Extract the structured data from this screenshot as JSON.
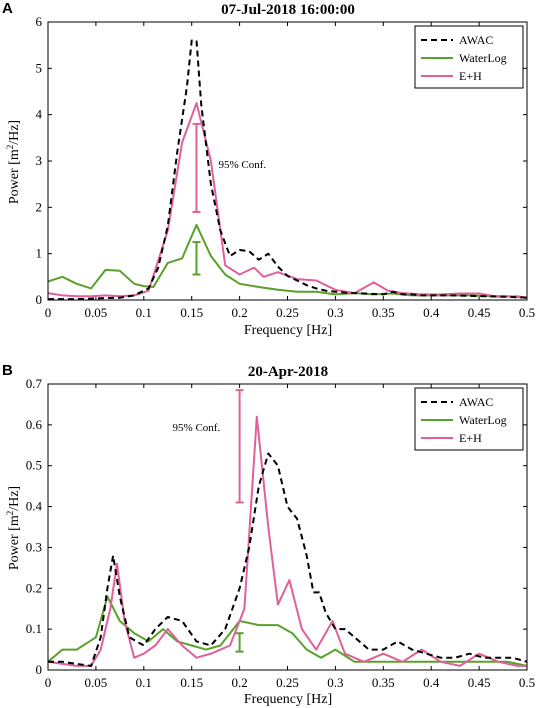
{
  "chart_data": [
    {
      "panel": "A",
      "type": "line",
      "title": "07-Jul-2018 16:00:00",
      "xlabel": "Frequency [Hz]",
      "ylabel": "Power [m2/Hz]",
      "xlim": [
        0,
        0.5
      ],
      "ylim": [
        0,
        6
      ],
      "xticks": [
        "0",
        "0.05",
        "0.1",
        "0.15",
        "0.2",
        "0.25",
        "0.3",
        "0.35",
        "0.4",
        "0.45",
        "0.5"
      ],
      "yticks": [
        "0",
        "1",
        "2",
        "3",
        "4",
        "5",
        "6"
      ],
      "legend_position": "top-right",
      "grid": false,
      "series": [
        {
          "name": "AWAC",
          "color": "#000000",
          "dash": true,
          "x": [
            0,
            0.015,
            0.03,
            0.045,
            0.06,
            0.075,
            0.09,
            0.105,
            0.115,
            0.125,
            0.135,
            0.145,
            0.15,
            0.155,
            0.16,
            0.17,
            0.18,
            0.19,
            0.2,
            0.21,
            0.22,
            0.23,
            0.24,
            0.25,
            0.26,
            0.27,
            0.28,
            0.29,
            0.3,
            0.31,
            0.32,
            0.33,
            0.34,
            0.35,
            0.36,
            0.37,
            0.38,
            0.39,
            0.4,
            0.42,
            0.44,
            0.46,
            0.48,
            0.5
          ],
          "y": [
            0.02,
            0.02,
            0.02,
            0.03,
            0.04,
            0.05,
            0.1,
            0.25,
            0.7,
            1.6,
            3.2,
            4.6,
            5.6,
            5.6,
            4.2,
            2.5,
            1.5,
            0.95,
            1.08,
            1.05,
            0.87,
            1.0,
            0.72,
            0.52,
            0.42,
            0.32,
            0.25,
            0.2,
            0.18,
            0.16,
            0.15,
            0.14,
            0.13,
            0.12,
            0.18,
            0.12,
            0.12,
            0.1,
            0.1,
            0.1,
            0.09,
            0.08,
            0.07,
            0.05
          ]
        },
        {
          "name": "WaterLog",
          "color": "#5aa02c",
          "dash": false,
          "x": [
            0,
            0.015,
            0.03,
            0.045,
            0.06,
            0.075,
            0.09,
            0.1,
            0.11,
            0.125,
            0.14,
            0.155,
            0.17,
            0.185,
            0.2,
            0.22,
            0.24,
            0.26,
            0.28,
            0.3,
            0.32,
            0.34,
            0.36,
            0.38,
            0.4,
            0.42,
            0.44,
            0.46,
            0.48,
            0.5
          ],
          "y": [
            0.4,
            0.5,
            0.35,
            0.25,
            0.65,
            0.63,
            0.35,
            0.3,
            0.28,
            0.8,
            0.9,
            1.62,
            0.95,
            0.55,
            0.35,
            0.28,
            0.22,
            0.18,
            0.18,
            0.12,
            0.15,
            0.12,
            0.14,
            0.1,
            0.1,
            0.1,
            0.1,
            0.08,
            0.08,
            0.05
          ]
        },
        {
          "name": "E+H",
          "color": "#e0609a",
          "dash": false,
          "x": [
            0,
            0.015,
            0.03,
            0.045,
            0.06,
            0.075,
            0.09,
            0.105,
            0.125,
            0.14,
            0.155,
            0.17,
            0.185,
            0.2,
            0.215,
            0.225,
            0.24,
            0.26,
            0.28,
            0.3,
            0.32,
            0.34,
            0.355,
            0.37,
            0.39,
            0.41,
            0.43,
            0.45,
            0.47,
            0.49,
            0.5
          ],
          "y": [
            0.15,
            0.1,
            0.08,
            0.08,
            0.1,
            0.08,
            0.1,
            0.2,
            1.5,
            3.4,
            4.25,
            3.0,
            0.75,
            0.55,
            0.7,
            0.5,
            0.6,
            0.45,
            0.42,
            0.22,
            0.15,
            0.38,
            0.2,
            0.15,
            0.12,
            0.12,
            0.14,
            0.14,
            0.07,
            0.08,
            0.05
          ]
        }
      ],
      "conf_bars": [
        {
          "series": "E+H",
          "color": "#e0609a",
          "x": 0.155,
          "y_low": 1.9,
          "y_high": 3.8
        },
        {
          "series": "WaterLog",
          "color": "#5aa02c",
          "x": 0.155,
          "y_low": 0.55,
          "y_high": 1.25
        }
      ],
      "annotation": {
        "text": "95% Conf.",
        "x": 0.178,
        "y": 2.85
      }
    },
    {
      "panel": "B",
      "type": "line",
      "title": "20-Apr-2018",
      "xlabel": "Frequency [Hz]",
      "ylabel": "Power [m2/Hz]",
      "xlim": [
        0,
        0.5
      ],
      "ylim": [
        0,
        0.7
      ],
      "xticks": [
        "0",
        "0.05",
        "0.1",
        "0.15",
        "0.2",
        "0.25",
        "0.3",
        "0.35",
        "0.4",
        "0.45",
        "0.5"
      ],
      "yticks": [
        "0",
        "0.1",
        "0.2",
        "0.3",
        "0.4",
        "0.5",
        "0.6",
        "0.7"
      ],
      "legend_position": "top-right",
      "grid": false,
      "series": [
        {
          "name": "AWAC",
          "color": "#000000",
          "dash": true,
          "x": [
            0,
            0.015,
            0.03,
            0.045,
            0.055,
            0.062,
            0.068,
            0.075,
            0.085,
            0.1,
            0.112,
            0.125,
            0.14,
            0.155,
            0.17,
            0.185,
            0.2,
            0.21,
            0.22,
            0.23,
            0.24,
            0.25,
            0.26,
            0.27,
            0.277,
            0.283,
            0.29,
            0.3,
            0.31,
            0.32,
            0.335,
            0.35,
            0.365,
            0.38,
            0.395,
            0.41,
            0.425,
            0.44,
            0.455,
            0.47,
            0.485,
            0.5
          ],
          "y": [
            0.02,
            0.02,
            0.015,
            0.01,
            0.08,
            0.2,
            0.28,
            0.18,
            0.08,
            0.06,
            0.1,
            0.13,
            0.12,
            0.07,
            0.06,
            0.1,
            0.2,
            0.3,
            0.45,
            0.53,
            0.5,
            0.4,
            0.37,
            0.28,
            0.19,
            0.19,
            0.14,
            0.1,
            0.1,
            0.08,
            0.05,
            0.05,
            0.07,
            0.05,
            0.04,
            0.03,
            0.03,
            0.04,
            0.03,
            0.03,
            0.03,
            0.02
          ]
        },
        {
          "name": "WaterLog",
          "color": "#5aa02c",
          "dash": false,
          "x": [
            0,
            0.015,
            0.03,
            0.05,
            0.062,
            0.075,
            0.09,
            0.105,
            0.12,
            0.135,
            0.15,
            0.165,
            0.18,
            0.2,
            0.22,
            0.24,
            0.255,
            0.27,
            0.285,
            0.3,
            0.32,
            0.34,
            0.36,
            0.38,
            0.4,
            0.42,
            0.44,
            0.46,
            0.48,
            0.5
          ],
          "y": [
            0.02,
            0.05,
            0.05,
            0.08,
            0.18,
            0.12,
            0.09,
            0.07,
            0.1,
            0.07,
            0.06,
            0.05,
            0.06,
            0.12,
            0.11,
            0.11,
            0.09,
            0.05,
            0.03,
            0.05,
            0.02,
            0.02,
            0.02,
            0.02,
            0.02,
            0.02,
            0.02,
            0.02,
            0.02,
            0.01
          ]
        },
        {
          "name": "E+H",
          "color": "#e0609a",
          "dash": false,
          "x": [
            0,
            0.015,
            0.03,
            0.045,
            0.055,
            0.065,
            0.072,
            0.08,
            0.09,
            0.1,
            0.112,
            0.125,
            0.14,
            0.155,
            0.17,
            0.19,
            0.205,
            0.218,
            0.23,
            0.24,
            0.252,
            0.265,
            0.28,
            0.297,
            0.31,
            0.33,
            0.35,
            0.37,
            0.39,
            0.41,
            0.43,
            0.45,
            0.47,
            0.49,
            0.5
          ],
          "y": [
            0.02,
            0.015,
            0.01,
            0.01,
            0.05,
            0.15,
            0.26,
            0.12,
            0.03,
            0.04,
            0.06,
            0.1,
            0.06,
            0.03,
            0.04,
            0.06,
            0.15,
            0.62,
            0.35,
            0.16,
            0.22,
            0.1,
            0.05,
            0.12,
            0.04,
            0.02,
            0.04,
            0.02,
            0.05,
            0.02,
            0.01,
            0.04,
            0.02,
            0.01,
            0.01
          ]
        }
      ],
      "conf_bars": [
        {
          "series": "E+H",
          "color": "#e0609a",
          "x": 0.2,
          "y_low": 0.41,
          "y_high": 0.685
        },
        {
          "series": "WaterLog",
          "color": "#5aa02c",
          "x": 0.2,
          "y_low": 0.045,
          "y_high": 0.09
        }
      ],
      "annotation": {
        "text": "95% Conf.",
        "x": 0.13,
        "y": 0.585
      }
    }
  ]
}
